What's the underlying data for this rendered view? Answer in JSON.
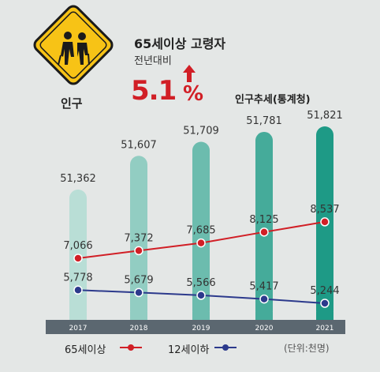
{
  "header": {
    "sign_label": "인구",
    "headline": "65세이상 고령자",
    "subline": "전년대비",
    "pct_value": "5.1",
    "pct_sign": "%",
    "trend_title": "인구추세(통계청)"
  },
  "footer": {
    "unit": "(단위:천명)"
  },
  "colors": {
    "bar_light": "#b9ded6",
    "bar_dark": "#1e9a86",
    "older": "#d11f26",
    "younger": "#2c3a8c",
    "axis_band": "#5b6770"
  },
  "chart_data": {
    "type": "bar",
    "categories": [
      "2017",
      "2018",
      "2019",
      "2020",
      "2021"
    ],
    "series": [
      {
        "values": [
          51362,
          51607,
          51709,
          51781,
          51821
        ]
      },
      {
        "name": "65세이상",
        "type": "line",
        "values": [
          7066,
          7372,
          7685,
          8125,
          8537
        ]
      },
      {
        "name": "12세이하",
        "type": "line",
        "values": [
          5778,
          5679,
          5566,
          5417,
          5244
        ]
      }
    ],
    "value_labels": {
      "bars": [
        "51,362",
        "51,607",
        "51,709",
        "51,781",
        "51,821"
      ],
      "older": [
        "7,066",
        "7,372",
        "7,685",
        "8,125",
        "8,537"
      ],
      "younger": [
        "5,778",
        "5,679",
        "5,566",
        "5,417",
        "5,244"
      ]
    },
    "legend_position": "bottom-left",
    "grid": false
  }
}
